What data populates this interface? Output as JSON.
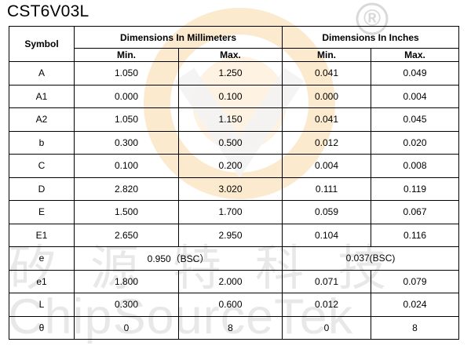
{
  "title": "CST6V03L",
  "watermark": {
    "registered": "®",
    "chinese": "矽源特科技",
    "english": "ChipSourceTek"
  },
  "table": {
    "symbol_header": "Symbol",
    "mm_header": "Dimensions In Millimeters",
    "in_header": "Dimensions In Inches",
    "min_label": "Min.",
    "max_label": "Max.",
    "rows": [
      {
        "symbol": "A",
        "mm_min": "1.050",
        "mm_max": "1.250",
        "in_min": "0.041",
        "in_max": "0.049"
      },
      {
        "symbol": "A1",
        "mm_min": "0.000",
        "mm_max": "0.100",
        "in_min": "0.000",
        "in_max": "0.004"
      },
      {
        "symbol": "A2",
        "mm_min": "1.050",
        "mm_max": "1.150",
        "in_min": "0.041",
        "in_max": "0.045"
      },
      {
        "symbol": "b",
        "mm_min": "0.300",
        "mm_max": "0.500",
        "in_min": "0.012",
        "in_max": "0.020"
      },
      {
        "symbol": "C",
        "mm_min": "0.100",
        "mm_max": "0.200",
        "in_min": "0.004",
        "in_max": "0.008"
      },
      {
        "symbol": "D",
        "mm_min": "2.820",
        "mm_max": "3.020",
        "in_min": "0.111",
        "in_max": "0.119"
      },
      {
        "symbol": "E",
        "mm_min": "1.500",
        "mm_max": "1.700",
        "in_min": "0.059",
        "in_max": "0.067"
      },
      {
        "symbol": "E1",
        "mm_min": "2.650",
        "mm_max": "2.950",
        "in_min": "0.104",
        "in_max": "0.116"
      }
    ],
    "e_row": {
      "symbol": "e",
      "mm": "0.950（BSC）",
      "in": "0.037(BSC)"
    },
    "rows_after": [
      {
        "symbol": "e1",
        "mm_min": "1.800",
        "mm_max": "2.000",
        "in_min": "0.071",
        "in_max": "0.079"
      },
      {
        "symbol": "L",
        "mm_min": "0.300",
        "mm_max": "0.600",
        "in_min": "0.012",
        "in_max": "0.024"
      },
      {
        "symbol": "θ",
        "mm_min": "0",
        "mm_max": "8",
        "in_min": "0",
        "in_max": "8"
      }
    ]
  }
}
